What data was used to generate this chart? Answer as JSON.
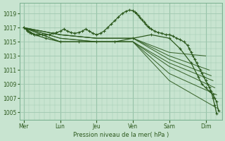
{
  "title": "Pression niveau de la mer( hPa )",
  "bg_color": "#c8e4d0",
  "grid_color": "#a0c8b0",
  "line_color": "#2d5a1e",
  "ylim": [
    1004,
    1020.5
  ],
  "yticks": [
    1005,
    1007,
    1009,
    1011,
    1013,
    1015,
    1017,
    1019
  ],
  "day_labels": [
    "Mer",
    "Lun",
    "Jeu",
    "Ven",
    "Sam",
    "Dim"
  ],
  "day_positions": [
    0,
    1,
    2,
    3,
    4,
    5
  ],
  "xlim": [
    -0.12,
    5.45
  ],
  "fan_lines": [
    {
      "x": [
        0,
        1,
        2,
        3,
        4,
        5.0
      ],
      "y": [
        1017,
        1016,
        1015.5,
        1015.5,
        1013.5,
        1013.0
      ]
    },
    {
      "x": [
        0,
        1,
        2,
        3,
        4,
        5.1
      ],
      "y": [
        1017,
        1016,
        1015.5,
        1015.5,
        1013.0,
        1011.0
      ]
    },
    {
      "x": [
        0,
        1,
        2,
        3,
        4,
        5.15
      ],
      "y": [
        1017,
        1016,
        1015.5,
        1015.5,
        1012.5,
        1010.2
      ]
    },
    {
      "x": [
        0,
        1,
        2,
        3,
        4,
        5.2
      ],
      "y": [
        1017,
        1015.5,
        1015.0,
        1015.0,
        1012.0,
        1009.5
      ]
    },
    {
      "x": [
        0,
        1,
        2,
        3,
        4,
        5.25
      ],
      "y": [
        1017,
        1015.5,
        1015.0,
        1015.0,
        1011.5,
        1008.5
      ]
    },
    {
      "x": [
        0,
        1,
        2,
        3,
        4,
        5.3
      ],
      "y": [
        1017,
        1015.0,
        1015.0,
        1015.0,
        1010.5,
        1007.5
      ]
    },
    {
      "x": [
        0,
        1,
        2,
        3,
        4,
        5.35
      ],
      "y": [
        1017,
        1015.0,
        1015.0,
        1015.0,
        1009.5,
        1005.5
      ]
    }
  ],
  "main_line_x": [
    0.0,
    0.05,
    0.1,
    0.15,
    0.2,
    0.25,
    0.3,
    0.35,
    0.4,
    0.5,
    0.6,
    0.7,
    0.8,
    0.9,
    1.0,
    1.1,
    1.2,
    1.3,
    1.4,
    1.5,
    1.6,
    1.7,
    1.8,
    1.9,
    2.0,
    2.1,
    2.2,
    2.3,
    2.4,
    2.5,
    2.6,
    2.7,
    2.8,
    2.9,
    3.0,
    3.05,
    3.1,
    3.15,
    3.2,
    3.25,
    3.3,
    3.35,
    3.4,
    3.45,
    3.5,
    3.6,
    3.7,
    3.8,
    3.9,
    4.0,
    4.1,
    4.2,
    4.3,
    4.4,
    4.5,
    4.55,
    4.6,
    4.65,
    4.7,
    4.75,
    4.8,
    4.85,
    4.9,
    4.95,
    5.0,
    5.05,
    5.1,
    5.15,
    5.2,
    5.25,
    5.3
  ],
  "main_line_y": [
    1017.0,
    1016.8,
    1016.5,
    1016.3,
    1016.2,
    1016.1,
    1016.0,
    1016.0,
    1016.0,
    1016.0,
    1016.0,
    1016.0,
    1016.2,
    1016.3,
    1016.5,
    1016.8,
    1016.5,
    1016.3,
    1016.2,
    1016.3,
    1016.5,
    1016.8,
    1016.5,
    1016.2,
    1016.0,
    1016.2,
    1016.5,
    1017.0,
    1017.5,
    1018.0,
    1018.5,
    1019.0,
    1019.3,
    1019.5,
    1019.4,
    1019.2,
    1019.0,
    1018.7,
    1018.4,
    1018.1,
    1017.8,
    1017.5,
    1017.2,
    1017.0,
    1016.8,
    1016.5,
    1016.3,
    1016.2,
    1016.0,
    1016.0,
    1015.8,
    1015.5,
    1015.3,
    1015.0,
    1014.5,
    1014.0,
    1013.5,
    1013.0,
    1012.5,
    1012.0,
    1011.5,
    1011.0,
    1010.5,
    1010.0,
    1009.5,
    1009.0,
    1008.5,
    1008.0,
    1007.0,
    1006.0,
    1004.8
  ],
  "bottom_line_x": [
    0,
    0.3,
    0.6,
    1.0,
    1.5,
    2.0,
    2.5,
    3.0,
    3.5,
    4.0,
    4.3,
    4.6,
    4.8,
    4.9,
    5.0,
    5.1,
    5.2,
    5.25,
    5.3,
    5.35
  ],
  "bottom_line_y": [
    1017,
    1016,
    1015.5,
    1015,
    1015,
    1015,
    1015,
    1015.5,
    1016,
    1015.5,
    1014,
    1012,
    1010,
    1009,
    1008.5,
    1008,
    1007.5,
    1007,
    1006.5,
    1005.2
  ]
}
